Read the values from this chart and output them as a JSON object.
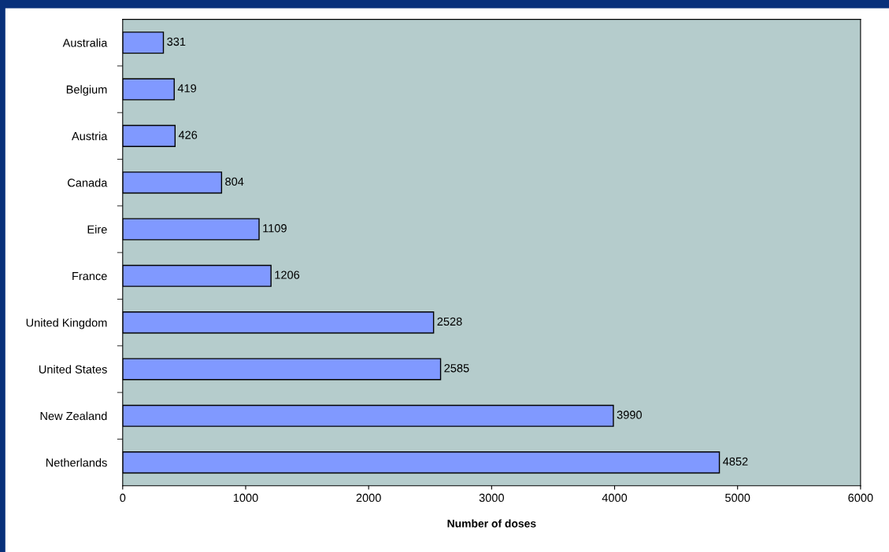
{
  "chart_data": {
    "type": "bar",
    "orientation": "horizontal",
    "xlabel": "Number of doses",
    "categories": [
      "Australia",
      "Belgium",
      "Austria",
      "Canada",
      "Eire",
      "France",
      "United Kingdom",
      "United States",
      "New Zealand",
      "Netherlands"
    ],
    "values": [
      331,
      419,
      426,
      804,
      1109,
      1206,
      2528,
      2585,
      3990,
      4852
    ],
    "color": "#8099ff",
    "xlim": [
      0,
      6000
    ],
    "xticks": [
      0,
      1000,
      2000,
      3000,
      4000,
      5000,
      6000
    ],
    "data_labels": true,
    "grid": false,
    "legend": false
  }
}
